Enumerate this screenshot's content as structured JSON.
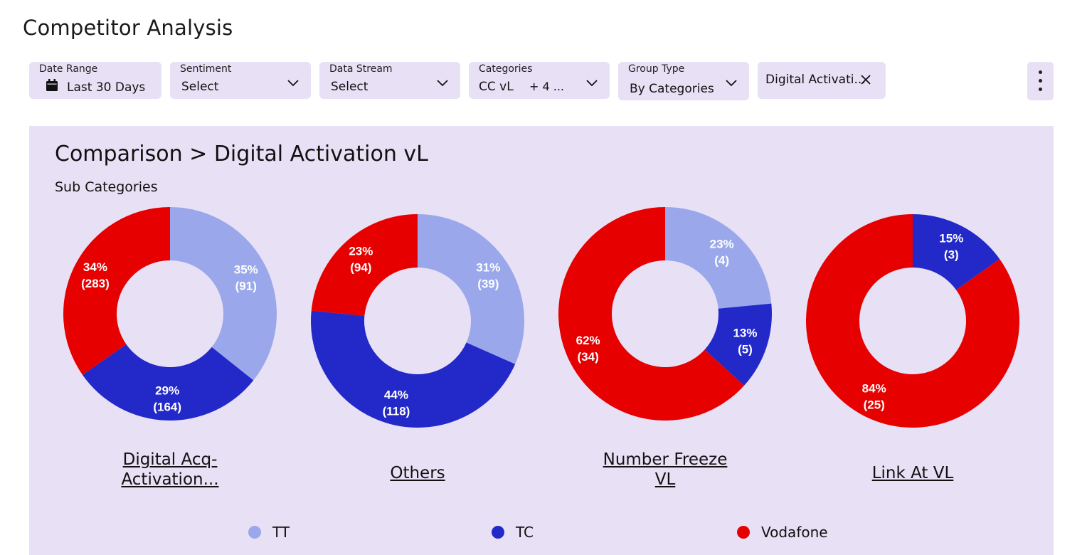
{
  "page": {
    "title": "Competitor Analysis"
  },
  "filters": {
    "date_range": {
      "label": "Date Range",
      "value": "Last 30 Days"
    },
    "sentiment": {
      "label": "Sentiment",
      "value": "Select"
    },
    "data_stream": {
      "label": "Data Stream",
      "value": "Select"
    },
    "categories": {
      "label": "Categories",
      "value": "CC vL",
      "extra": "+ 4 ..."
    },
    "group_type": {
      "label": "Group Type",
      "value": "By Categories"
    },
    "chip": {
      "value": "Digital Activati..."
    }
  },
  "panel": {
    "title": "Comparison > Digital Activation vL",
    "subtitle": "Sub Categories"
  },
  "colors": {
    "TT": "#9aa8eb",
    "TC": "#2229c8",
    "Vodafone": "#e60000"
  },
  "chart_data": {
    "type": "pie",
    "legend": {
      "placement": "bottom",
      "entries": [
        "TT",
        "TC",
        "Vodafone"
      ]
    },
    "charts": [
      {
        "title_lines": [
          "Digital Acq-",
          "Activation..."
        ],
        "slices": [
          {
            "name": "TT",
            "percent": 35,
            "count": 91
          },
          {
            "name": "TC",
            "percent": 29,
            "count": 164
          },
          {
            "name": "Vodafone",
            "percent": 34,
            "count": 283
          }
        ]
      },
      {
        "title_lines": [
          "Others"
        ],
        "slices": [
          {
            "name": "TT",
            "percent": 31,
            "count": 39
          },
          {
            "name": "TC",
            "percent": 44,
            "count": 118
          },
          {
            "name": "Vodafone",
            "percent": 23,
            "count": 94
          }
        ]
      },
      {
        "title_lines": [
          "Number Freeze",
          "VL"
        ],
        "slices": [
          {
            "name": "TT",
            "percent": 23,
            "count": 4
          },
          {
            "name": "TC",
            "percent": 13,
            "count": 5
          },
          {
            "name": "Vodafone",
            "percent": 62,
            "count": 34
          }
        ]
      },
      {
        "title_lines": [
          "Link At VL"
        ],
        "slices": [
          {
            "name": "TC",
            "percent": 15,
            "count": 3
          },
          {
            "name": "Vodafone",
            "percent": 84,
            "count": 25
          }
        ]
      }
    ]
  }
}
